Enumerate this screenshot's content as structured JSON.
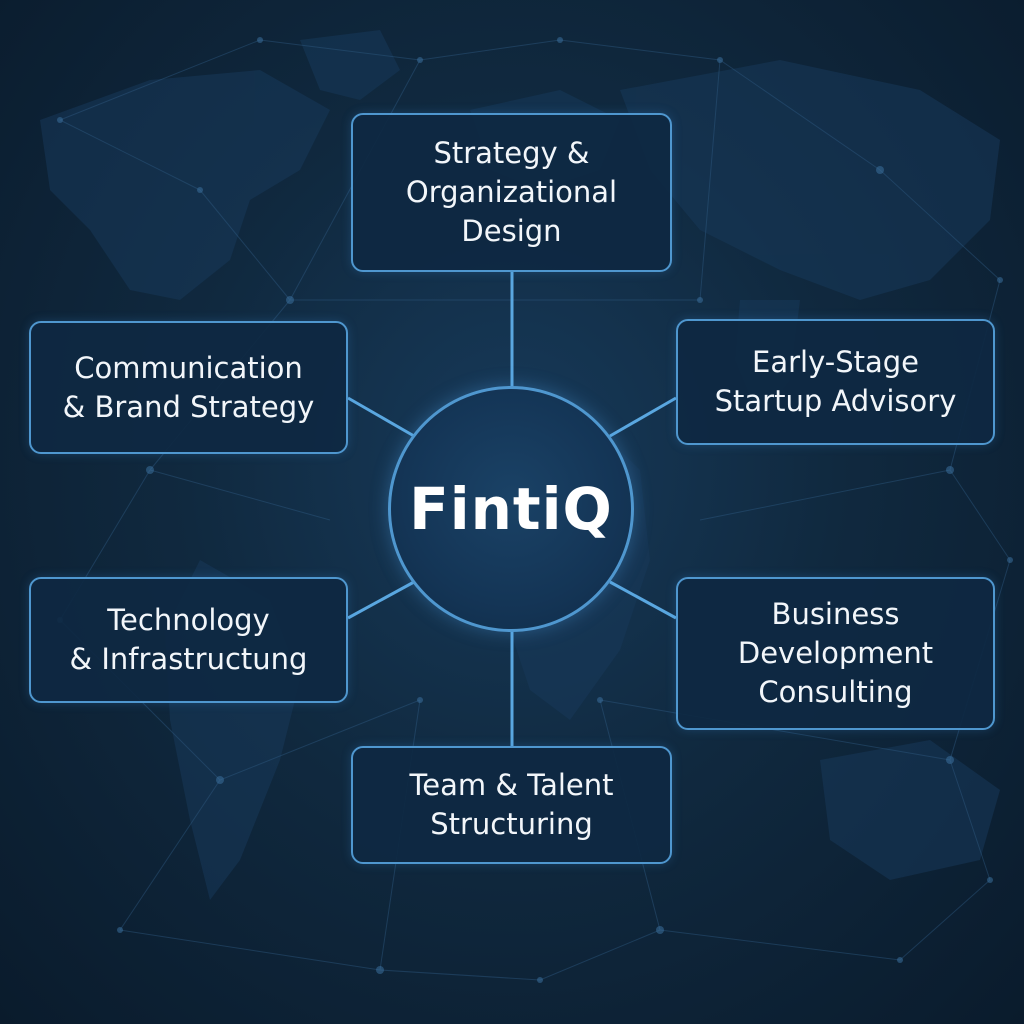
{
  "hub": {
    "label": "FintiQ"
  },
  "nodes": {
    "top": {
      "label": "Strategy &\nOrganizational\nDesign"
    },
    "upper_right": {
      "label": "Early-Stage\nStartup Advisory"
    },
    "upper_left": {
      "label": "Communication\n& Brand Strategy"
    },
    "lower_left": {
      "label": "Technology\n& Infrastructung"
    },
    "lower_right": {
      "label": "Business\nDevelopment\nConsulting"
    },
    "bottom": {
      "label": "Team & Talent\nStructuring"
    }
  },
  "colors": {
    "background": "#0c2136",
    "accent": "#4f97cf",
    "box_fill": "#0e2842",
    "text": "#f2f6fa"
  }
}
